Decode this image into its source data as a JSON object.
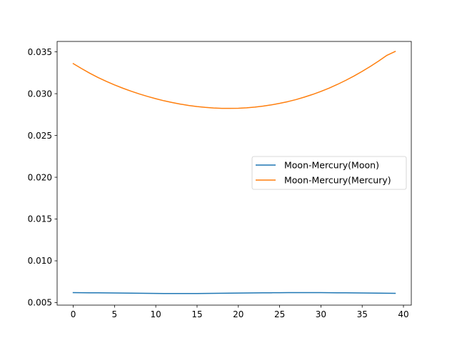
{
  "chart_data": {
    "type": "line",
    "title": "",
    "xlabel": "",
    "ylabel": "",
    "xlim": [
      -1.95,
      40.95
    ],
    "ylim": [
      0.0047,
      0.03625
    ],
    "x_ticks": [
      0,
      5,
      10,
      15,
      20,
      25,
      30,
      35,
      40
    ],
    "y_ticks": [
      0.005,
      0.01,
      0.015,
      0.02,
      0.025,
      0.03,
      0.035
    ],
    "x_tick_labels": [
      "0",
      "5",
      "10",
      "15",
      "20",
      "25",
      "30",
      "35",
      "40"
    ],
    "y_tick_labels": [
      "0.005",
      "0.010",
      "0.015",
      "0.020",
      "0.025",
      "0.030",
      "0.035"
    ],
    "grid": false,
    "legend_position": "center-right",
    "x": [
      0,
      1,
      2,
      3,
      4,
      5,
      6,
      7,
      8,
      9,
      10,
      11,
      12,
      13,
      14,
      15,
      16,
      17,
      18,
      19,
      20,
      21,
      22,
      23,
      24,
      25,
      26,
      27,
      28,
      29,
      30,
      31,
      32,
      33,
      34,
      35,
      36,
      37,
      38,
      39
    ],
    "series": [
      {
        "name": "Moon-Mercury(Moon)",
        "color": "#1f77b4",
        "values": [
          0.0062,
          0.00619,
          0.00618,
          0.00617,
          0.00616,
          0.00615,
          0.00614,
          0.00613,
          0.00612,
          0.00611,
          0.0061,
          0.00609,
          0.00609,
          0.00609,
          0.00609,
          0.00609,
          0.0061,
          0.00611,
          0.00612,
          0.00613,
          0.00614,
          0.00615,
          0.00616,
          0.00617,
          0.00618,
          0.00619,
          0.0062,
          0.0062,
          0.0062,
          0.0062,
          0.0062,
          0.00619,
          0.00618,
          0.00617,
          0.00616,
          0.00615,
          0.00614,
          0.00613,
          0.00612,
          0.00611
        ]
      },
      {
        "name": "Moon-Mercury(Mercury)",
        "color": "#ff7f0e",
        "values": [
          0.0336,
          0.03301,
          0.03245,
          0.03194,
          0.03148,
          0.03105,
          0.03066,
          0.0303,
          0.02997,
          0.02967,
          0.0294,
          0.02915,
          0.02894,
          0.02875,
          0.02859,
          0.02846,
          0.02836,
          0.02829,
          0.02825,
          0.02824,
          0.02826,
          0.02831,
          0.02839,
          0.02851,
          0.02866,
          0.02884,
          0.02905,
          0.0293,
          0.02959,
          0.02991,
          0.03027,
          0.03067,
          0.03111,
          0.03159,
          0.03211,
          0.03267,
          0.03327,
          0.03391,
          0.03459,
          0.03505
        ]
      }
    ]
  }
}
